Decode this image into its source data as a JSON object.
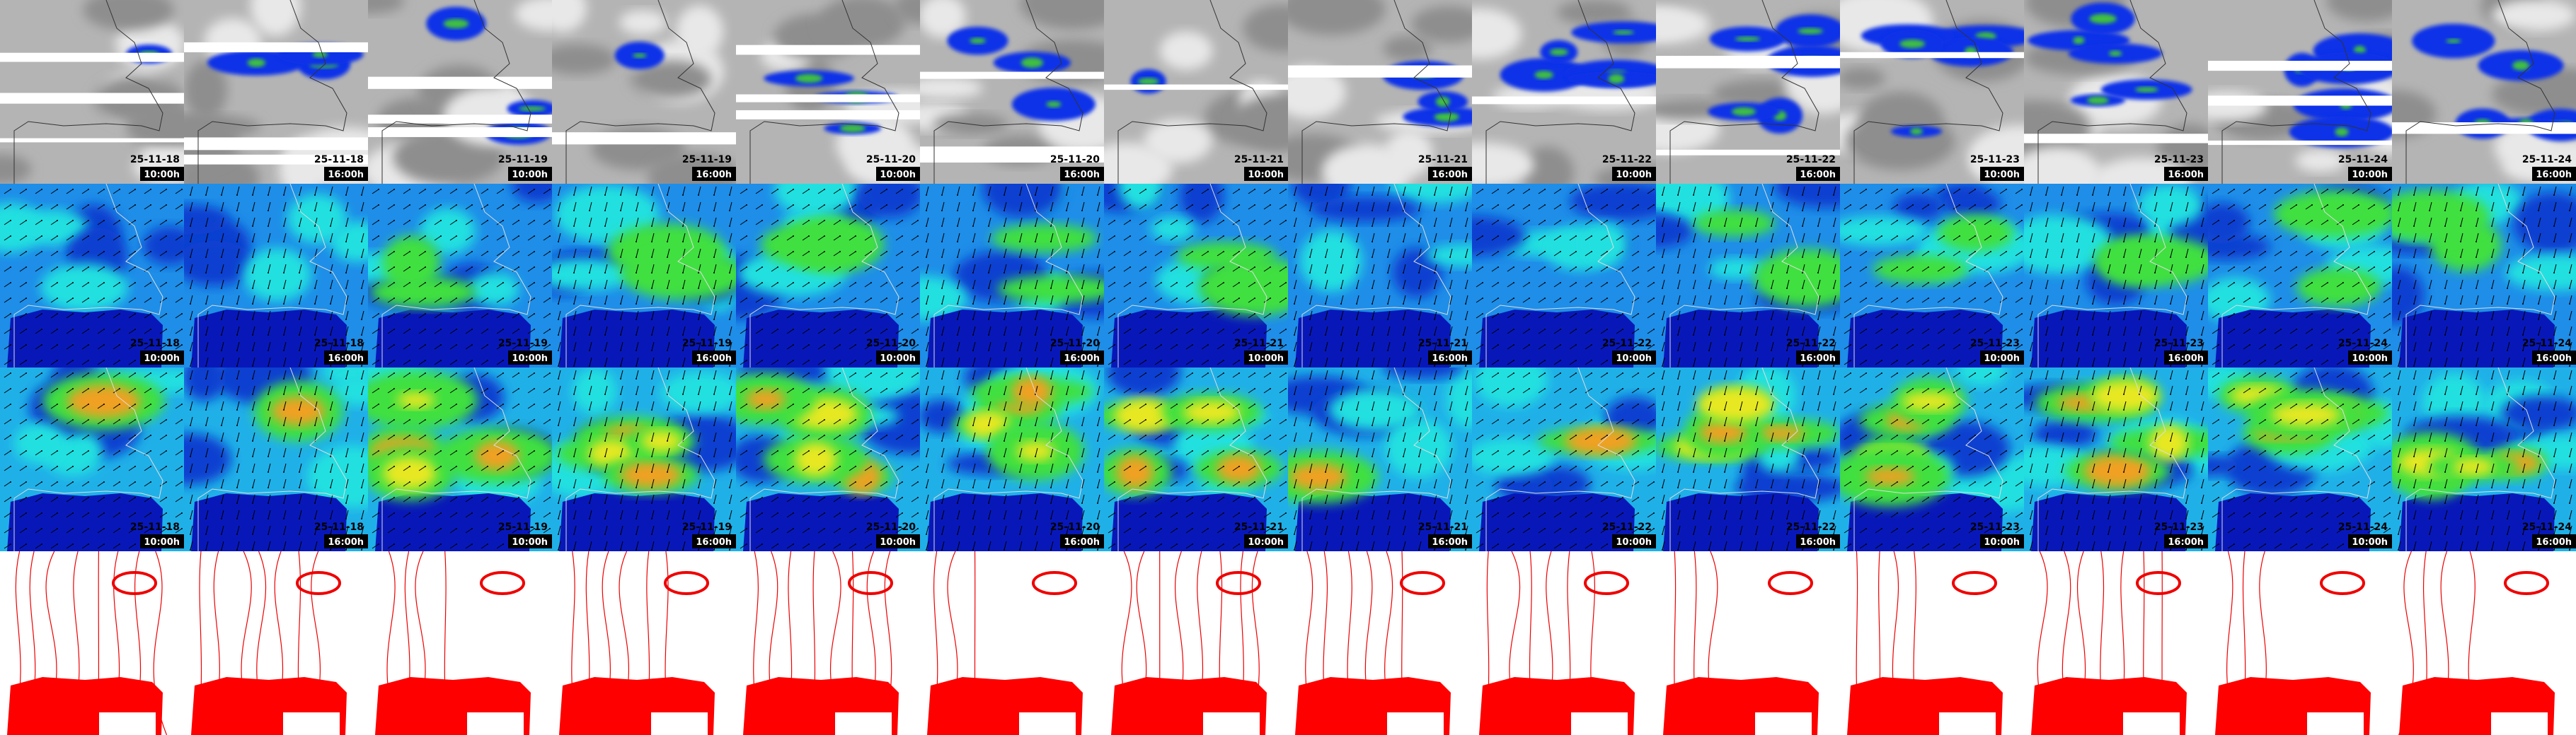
{
  "columns": [
    {
      "date": "25-11-18",
      "time": "10:00h"
    },
    {
      "date": "25-11-18",
      "time": "16:00h"
    },
    {
      "date": "25-11-19",
      "time": "10:00h"
    },
    {
      "date": "25-11-19",
      "time": "16:00h"
    },
    {
      "date": "25-11-20",
      "time": "10:00h"
    },
    {
      "date": "25-11-20",
      "time": "16:00h"
    },
    {
      "date": "25-11-21",
      "time": "10:00h"
    },
    {
      "date": "25-11-21",
      "time": "16:00h"
    },
    {
      "date": "25-11-22",
      "time": "10:00h"
    },
    {
      "date": "25-11-22",
      "time": "16:00h"
    },
    {
      "date": "25-11-23",
      "time": "10:00h"
    },
    {
      "date": "25-11-23",
      "time": "16:00h"
    },
    {
      "date": "25-11-24",
      "time": "10:00h"
    },
    {
      "date": "25-11-24",
      "time": "16:00h"
    }
  ]
}
